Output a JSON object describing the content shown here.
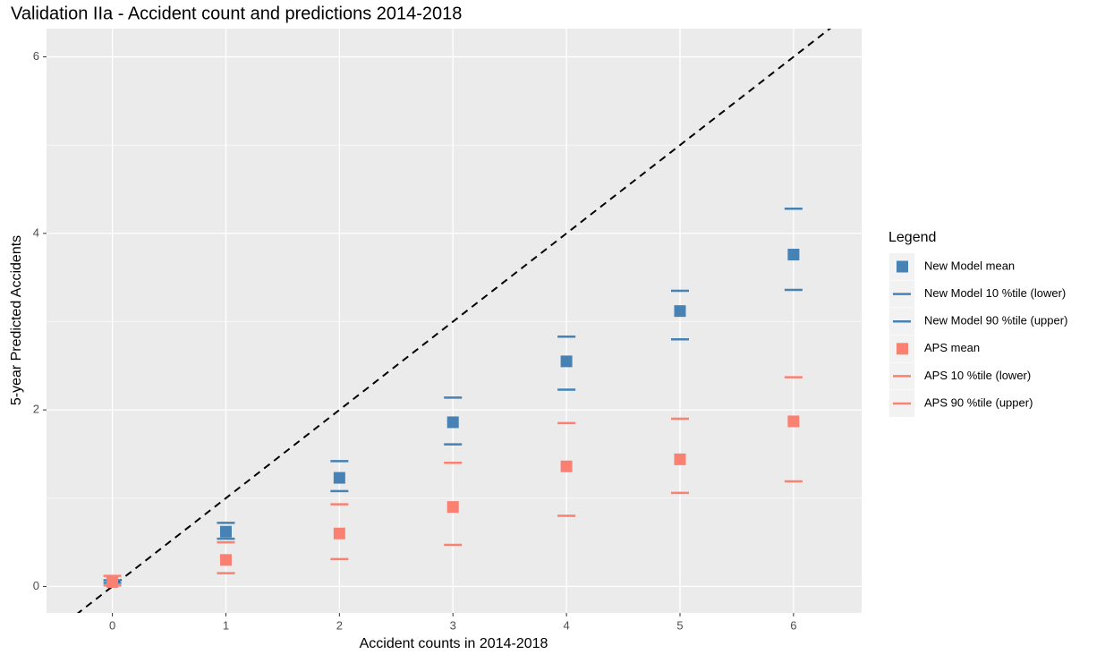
{
  "chart_data": {
    "type": "scatter",
    "title": "Validation IIa - Accident count and predictions 2014-2018",
    "xlabel": "Accident counts in 2014-2018",
    "ylabel": "5-year Predicted Accidents",
    "legend_title": "Legend",
    "legend_position": "right",
    "grid": true,
    "x": [
      0,
      1,
      2,
      3,
      4,
      5,
      6
    ],
    "xlim": [
      -0.58,
      6.6
    ],
    "xticks": [
      0,
      1,
      2,
      3,
      4,
      5,
      6
    ],
    "ylim": [
      -0.3,
      6.32
    ],
    "yticks": [
      0,
      2,
      4,
      6
    ],
    "abline": {
      "slope": 1,
      "intercept": 0,
      "color": "#000000"
    },
    "series": [
      {
        "name": "New Model mean",
        "color": "#4682b4",
        "marker": "square",
        "values": [
          0.05,
          0.62,
          1.23,
          1.86,
          2.55,
          3.12,
          3.76
        ]
      },
      {
        "name": "New Model 10 %tile (lower)",
        "color": "#4682b4",
        "marker": "dash",
        "values": [
          0.04,
          0.54,
          1.08,
          1.61,
          2.23,
          2.8,
          3.36
        ]
      },
      {
        "name": "New Model 90 %tile (upper)",
        "color": "#4682b4",
        "marker": "dash",
        "values": [
          0.07,
          0.72,
          1.42,
          2.14,
          2.83,
          3.35,
          4.28
        ]
      },
      {
        "name": "APS mean",
        "color": "#fa8072",
        "marker": "square",
        "values": [
          0.05,
          0.3,
          0.6,
          0.9,
          1.36,
          1.44,
          1.87
        ]
      },
      {
        "name": "APS 10 %tile (lower)",
        "color": "#fa8072",
        "marker": "dash",
        "values": [
          0.01,
          0.15,
          0.31,
          0.47,
          0.8,
          1.06,
          1.19
        ]
      },
      {
        "name": "APS 90 %tile (upper)",
        "color": "#fa8072",
        "marker": "dash",
        "values": [
          0.12,
          0.5,
          0.93,
          1.4,
          1.85,
          1.9,
          2.37
        ]
      }
    ]
  }
}
